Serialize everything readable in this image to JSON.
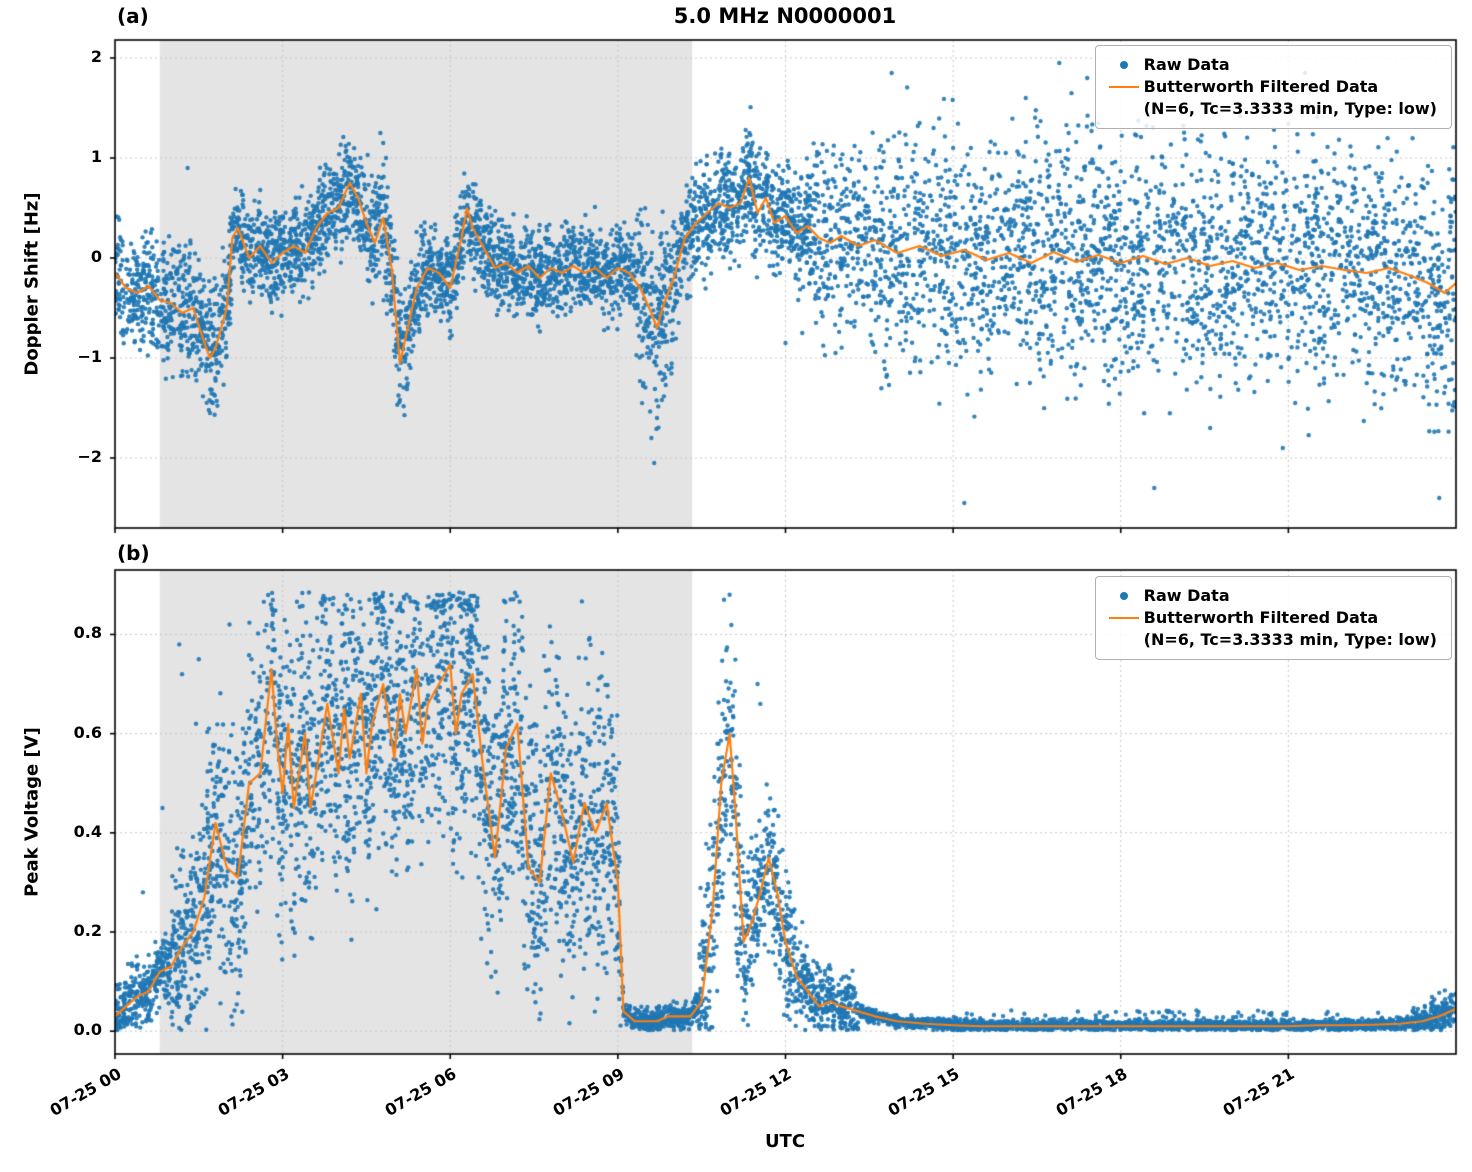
{
  "figure": {
    "title": "5.0 MHz N0000001",
    "panel_a_label": "(a)",
    "panel_b_label": "(b)",
    "x_axis": {
      "label": "UTC",
      "xlim_hours": [
        0,
        24
      ],
      "tick_hours": [
        0,
        3,
        6,
        9,
        12,
        15,
        18,
        21
      ],
      "tick_labels": [
        "07-25 00",
        "07-25 03",
        "07-25 06",
        "07-25 09",
        "07-25 12",
        "07-25 15",
        "07-25 18",
        "07-25 21"
      ]
    },
    "shaded_region_hours": [
      0.8,
      10.33
    ],
    "colors": {
      "raw": "#1f77b4",
      "filtered": "#ff7f0e",
      "shade": "#e4e4e4",
      "grid": "#c8c8c8"
    },
    "legend": {
      "raw_label": "Raw Data",
      "filtered_label": "Butterworth Filtered Data",
      "filtered_sublabel": "(N=6, Tc=3.3333 min, Type: low)"
    }
  },
  "chart_data": [
    {
      "panel": "a",
      "type": "scatter",
      "title": "5.0 MHz N0000001",
      "ylabel": "Doppler Shift [Hz]",
      "ylim": [
        -2.7,
        2.18
      ],
      "yticks": [
        2,
        1,
        0,
        -1,
        -2
      ],
      "ytick_labels": [
        "2",
        "1",
        "0",
        "−1",
        "−2"
      ],
      "series": [
        {
          "name": "Raw Data",
          "type": "scatter"
        },
        {
          "name": "Butterworth Filtered Data (N=6, Tc=3.3333 min, Type: low)",
          "type": "line",
          "x": [
            0,
            0.2,
            0.4,
            0.6,
            0.8,
            1.0,
            1.2,
            1.4,
            1.6,
            1.7,
            1.8,
            2.0,
            2.1,
            2.2,
            2.4,
            2.6,
            2.8,
            3.0,
            3.2,
            3.4,
            3.6,
            3.8,
            4.0,
            4.2,
            4.35,
            4.5,
            4.65,
            4.8,
            4.95,
            5.1,
            5.2,
            5.4,
            5.6,
            5.8,
            6.0,
            6.2,
            6.3,
            6.4,
            6.6,
            6.8,
            7.0,
            7.2,
            7.4,
            7.6,
            7.8,
            8.0,
            8.2,
            8.4,
            8.6,
            8.8,
            9.0,
            9.2,
            9.4,
            9.6,
            9.7,
            9.8,
            10.0,
            10.2,
            10.4,
            10.6,
            10.8,
            11.0,
            11.2,
            11.35,
            11.5,
            11.65,
            11.8,
            12.0,
            12.2,
            12.4,
            12.6,
            12.8,
            13.0,
            13.3,
            13.6,
            14.0,
            14.4,
            14.8,
            15.2,
            15.6,
            16.0,
            16.4,
            16.8,
            17.2,
            17.6,
            18.0,
            18.4,
            18.8,
            19.2,
            19.6,
            20.0,
            20.4,
            20.8,
            21.2,
            21.6,
            22.0,
            22.4,
            22.8,
            23.2,
            23.5,
            23.8,
            24.0
          ],
          "y": [
            -0.15,
            -0.3,
            -0.35,
            -0.28,
            -0.42,
            -0.45,
            -0.55,
            -0.5,
            -0.85,
            -1.0,
            -0.9,
            -0.5,
            0.2,
            0.3,
            0.0,
            0.12,
            -0.05,
            0.05,
            0.12,
            0.05,
            0.3,
            0.45,
            0.5,
            0.75,
            0.6,
            0.35,
            0.15,
            0.4,
            -0.1,
            -1.05,
            -0.8,
            -0.3,
            -0.1,
            -0.15,
            -0.3,
            0.2,
            0.5,
            0.3,
            0.1,
            -0.1,
            -0.05,
            -0.15,
            -0.08,
            -0.2,
            -0.1,
            -0.15,
            -0.08,
            -0.15,
            -0.1,
            -0.2,
            -0.1,
            -0.15,
            -0.3,
            -0.55,
            -0.7,
            -0.5,
            -0.2,
            0.2,
            0.35,
            0.45,
            0.55,
            0.5,
            0.55,
            0.8,
            0.45,
            0.6,
            0.35,
            0.42,
            0.25,
            0.32,
            0.2,
            0.15,
            0.22,
            0.12,
            0.18,
            0.05,
            0.12,
            0.02,
            0.08,
            -0.02,
            0.05,
            -0.05,
            0.06,
            -0.04,
            0.03,
            -0.05,
            0.02,
            -0.06,
            0.0,
            -0.08,
            -0.03,
            -0.1,
            -0.05,
            -0.12,
            -0.08,
            -0.12,
            -0.15,
            -0.1,
            -0.18,
            -0.25,
            -0.35,
            -0.25
          ]
        }
      ],
      "raw_scatter_envelope": [
        [
          0,
          0.8,
          0.28,
          300
        ],
        [
          0.8,
          1.6,
          0.32,
          320
        ],
        [
          1.6,
          2.1,
          0.3,
          320
        ],
        [
          2.1,
          4.5,
          0.24,
          320
        ],
        [
          4.5,
          5.4,
          0.3,
          320
        ],
        [
          5.4,
          9.3,
          0.22,
          320
        ],
        [
          9.3,
          10.0,
          0.42,
          320
        ],
        [
          10.0,
          12.5,
          0.27,
          320
        ],
        [
          12.5,
          13.5,
          0.45,
          240
        ],
        [
          13.5,
          24,
          0.6,
          240
        ]
      ],
      "raw_outliers": [
        [
          1.3,
          0.9
        ],
        [
          1.7,
          -1.55
        ],
        [
          1.75,
          -1.45
        ],
        [
          4.75,
          1.25
        ],
        [
          4.8,
          1.15
        ],
        [
          4.85,
          1.0
        ],
        [
          9.6,
          -1.8
        ],
        [
          9.65,
          -2.05
        ],
        [
          9.7,
          -1.6
        ],
        [
          11.4,
          1.05
        ],
        [
          11.45,
          0.95
        ],
        [
          13.9,
          1.85
        ],
        [
          14.4,
          1.35
        ],
        [
          15.2,
          -2.45
        ],
        [
          16.3,
          1.6
        ],
        [
          16.9,
          1.95
        ],
        [
          17.4,
          1.8
        ],
        [
          18.6,
          -2.3
        ],
        [
          19.6,
          -1.7
        ],
        [
          20.9,
          -1.9
        ],
        [
          21.3,
          1.85
        ],
        [
          22.6,
          1.5
        ],
        [
          23.7,
          -2.4
        ],
        [
          12.0,
          -0.85
        ],
        [
          12.3,
          -0.75
        ]
      ]
    },
    {
      "panel": "b",
      "type": "scatter",
      "ylabel": "Peak Voltage [V]",
      "ylim": [
        -0.046,
        0.93
      ],
      "yticks": [
        0.8,
        0.6,
        0.4,
        0.2,
        0.0
      ],
      "ytick_labels": [
        "0.8",
        "0.6",
        "0.4",
        "0.2",
        "0.0"
      ],
      "series": [
        {
          "name": "Raw Data",
          "type": "scatter"
        },
        {
          "name": "Butterworth Filtered Data (N=6, Tc=3.3333 min, Type: low)",
          "type": "line",
          "x": [
            0,
            0.2,
            0.4,
            0.6,
            0.8,
            1.0,
            1.2,
            1.4,
            1.6,
            1.8,
            2.0,
            2.2,
            2.4,
            2.6,
            2.8,
            2.9,
            3.0,
            3.1,
            3.2,
            3.4,
            3.5,
            3.6,
            3.8,
            4.0,
            4.1,
            4.2,
            4.4,
            4.5,
            4.6,
            4.8,
            5.0,
            5.1,
            5.2,
            5.4,
            5.5,
            5.6,
            5.8,
            6.0,
            6.1,
            6.2,
            6.4,
            6.6,
            6.8,
            7.0,
            7.2,
            7.4,
            7.6,
            7.8,
            8.0,
            8.2,
            8.4,
            8.6,
            8.8,
            9.0,
            9.1,
            9.3,
            9.5,
            9.7,
            9.9,
            10.1,
            10.3,
            10.5,
            10.7,
            10.85,
            11.0,
            11.1,
            11.25,
            11.4,
            11.55,
            11.7,
            11.85,
            12.0,
            12.2,
            12.4,
            12.6,
            12.8,
            13.0,
            13.3,
            13.6,
            14.0,
            14.5,
            15.0,
            15.5,
            16.0,
            16.5,
            17.0,
            17.5,
            18.0,
            18.5,
            19.0,
            19.5,
            20.0,
            20.5,
            21.0,
            21.5,
            22.0,
            22.5,
            23.0,
            23.4,
            23.7,
            24.0
          ],
          "y": [
            0.03,
            0.05,
            0.07,
            0.08,
            0.12,
            0.13,
            0.17,
            0.2,
            0.27,
            0.42,
            0.33,
            0.31,
            0.5,
            0.52,
            0.73,
            0.58,
            0.48,
            0.62,
            0.45,
            0.6,
            0.45,
            0.52,
            0.66,
            0.52,
            0.65,
            0.55,
            0.68,
            0.52,
            0.62,
            0.7,
            0.55,
            0.68,
            0.6,
            0.73,
            0.58,
            0.66,
            0.7,
            0.74,
            0.6,
            0.68,
            0.72,
            0.52,
            0.35,
            0.57,
            0.62,
            0.33,
            0.3,
            0.52,
            0.44,
            0.34,
            0.46,
            0.4,
            0.46,
            0.3,
            0.04,
            0.02,
            0.02,
            0.02,
            0.03,
            0.03,
            0.03,
            0.06,
            0.25,
            0.5,
            0.6,
            0.45,
            0.18,
            0.22,
            0.28,
            0.35,
            0.28,
            0.18,
            0.11,
            0.08,
            0.05,
            0.06,
            0.05,
            0.04,
            0.03,
            0.02,
            0.015,
            0.012,
            0.01,
            0.01,
            0.01,
            0.01,
            0.01,
            0.01,
            0.01,
            0.01,
            0.01,
            0.01,
            0.01,
            0.01,
            0.012,
            0.012,
            0.013,
            0.015,
            0.02,
            0.03,
            0.045
          ]
        }
      ],
      "raw_scatter_envelope": [
        [
          0,
          1.0,
          0.035,
          300
        ],
        [
          1.0,
          1.6,
          0.09,
          320
        ],
        [
          1.6,
          2.4,
          0.13,
          340
        ],
        [
          2.4,
          9.05,
          0.15,
          340
        ],
        [
          9.05,
          10.45,
          0.012,
          280
        ],
        [
          10.45,
          11.25,
          0.12,
          320
        ],
        [
          11.25,
          12.2,
          0.07,
          320
        ],
        [
          12.2,
          13.3,
          0.035,
          280
        ],
        [
          13.3,
          23.2,
          0.006,
          220
        ],
        [
          23.2,
          24,
          0.018,
          260
        ]
      ],
      "raw_outliers": [
        [
          0.5,
          0.28
        ],
        [
          0.85,
          0.45
        ],
        [
          1.15,
          0.78
        ],
        [
          1.2,
          0.72
        ],
        [
          1.45,
          0.62
        ],
        [
          1.5,
          0.75
        ],
        [
          2.05,
          0.82
        ],
        [
          10.9,
          0.87
        ],
        [
          11.0,
          0.88
        ],
        [
          11.5,
          0.7
        ],
        [
          11.55,
          0.66
        ],
        [
          12.05,
          0.3
        ],
        [
          12.3,
          0.22
        ]
      ]
    }
  ]
}
